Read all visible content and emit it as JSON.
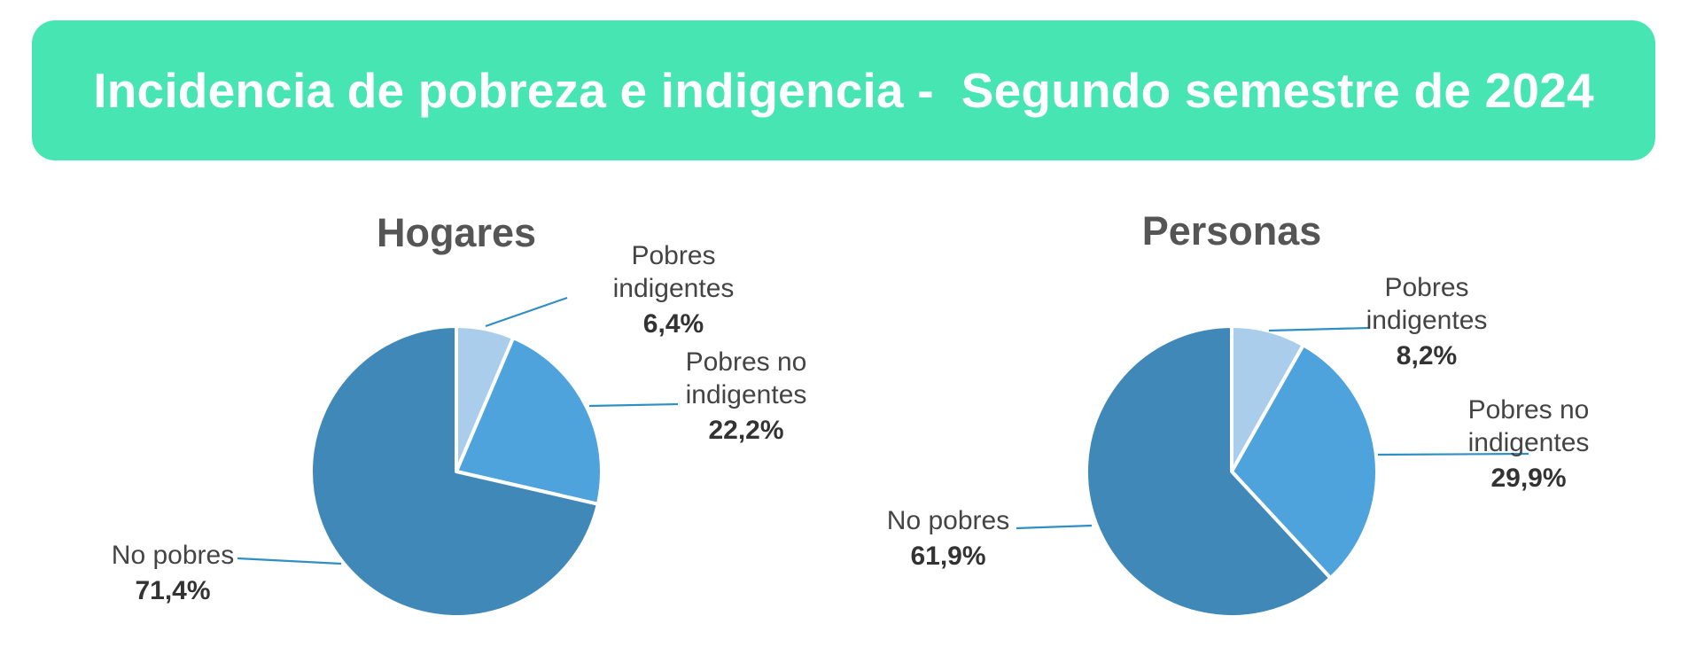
{
  "header": {
    "title": "Incidencia de pobreza e indigencia -  Segundo semestre de 2024",
    "color": "#46e5b2"
  },
  "colors": {
    "pobres_indigentes": "#a9cdea",
    "pobres_no_indigentes": "#4fa3dc",
    "no_pobres": "#4088b8",
    "leader": "#2f8ec4"
  },
  "chart_data": [
    {
      "type": "pie",
      "title": "Hogares",
      "slices": [
        {
          "name": "Pobres indigentes",
          "label_lines": [
            "Pobres",
            "indigentes"
          ],
          "value": 6.4,
          "value_label": "6,4%"
        },
        {
          "name": "Pobres no indigentes",
          "label_lines": [
            "Pobres no",
            "indigentes"
          ],
          "value": 22.2,
          "value_label": "22,2%"
        },
        {
          "name": "No pobres",
          "label_lines": [
            "No pobres"
          ],
          "value": 71.4,
          "value_label": "71,4%"
        }
      ]
    },
    {
      "type": "pie",
      "title": "Personas",
      "slices": [
        {
          "name": "Pobres indigentes",
          "label_lines": [
            "Pobres",
            "indigentes"
          ],
          "value": 8.2,
          "value_label": "8,2%"
        },
        {
          "name": "Pobres no indigentes",
          "label_lines": [
            "Pobres no",
            "indigentes"
          ],
          "value": 29.9,
          "value_label": "29,9%"
        },
        {
          "name": "No pobres",
          "label_lines": [
            "No pobres"
          ],
          "value": 61.9,
          "value_label": "61,9%"
        }
      ]
    }
  ]
}
